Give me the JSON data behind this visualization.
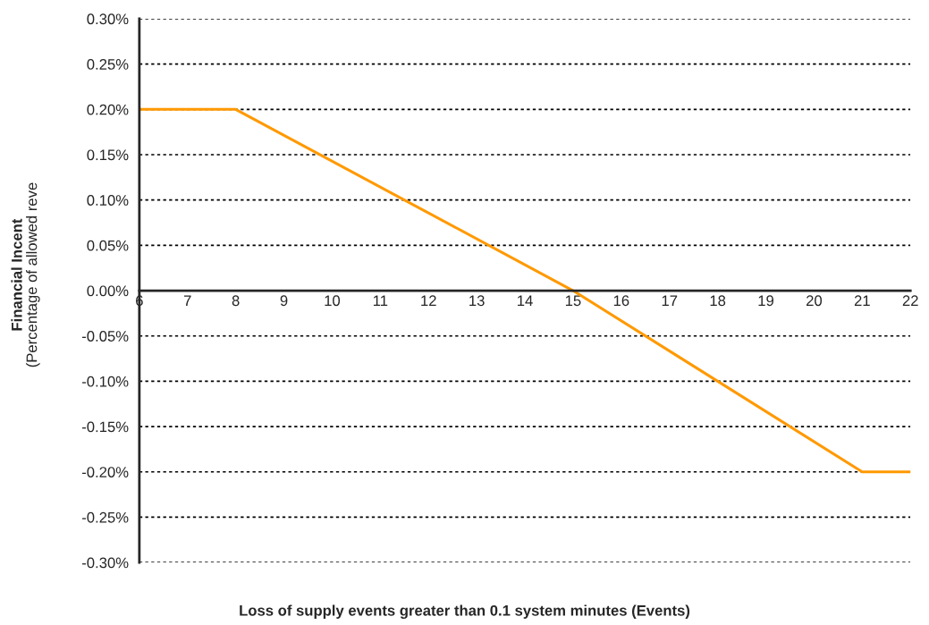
{
  "chart_data": {
    "type": "line",
    "xlabel": "Loss of supply events greater than 0.1 system minutes (Events)",
    "ylabel": "Financial Incent\n(Percentage of allowed reve",
    "x": [
      6,
      8,
      15,
      21,
      22
    ],
    "series": [
      {
        "color": "#ff9900",
        "values": [
          0.2,
          0.2,
          0.0,
          -0.2,
          -0.2
        ]
      }
    ],
    "xlim": [
      6,
      22
    ],
    "xticks": [
      6,
      7,
      8,
      9,
      10,
      11,
      12,
      13,
      14,
      15,
      16,
      17,
      18,
      19,
      20,
      21,
      22
    ],
    "ylim": [
      -0.3,
      0.3
    ],
    "yticks": [
      {
        "value": -0.3,
        "label": "-0.30%"
      },
      {
        "value": -0.25,
        "label": "-0.25%"
      },
      {
        "value": -0.2,
        "label": "-0.20%"
      },
      {
        "value": -0.15,
        "label": "-0.15%"
      },
      {
        "value": -0.1,
        "label": "-0.10%"
      },
      {
        "value": -0.05,
        "label": "-0.05%"
      },
      {
        "value": 0,
        "label": "0.00%"
      },
      {
        "value": 0.05,
        "label": "0.05%"
      },
      {
        "value": 0.1,
        "label": "0.10%"
      },
      {
        "value": 0.15,
        "label": "0.15%"
      },
      {
        "value": 0.2,
        "label": "0.20%"
      },
      {
        "value": 0.25,
        "label": "0.25%"
      },
      {
        "value": 0.3,
        "label": "0.30%"
      }
    ],
    "grid": "y",
    "legend": false,
    "marker": "none",
    "line_style": "solid"
  }
}
